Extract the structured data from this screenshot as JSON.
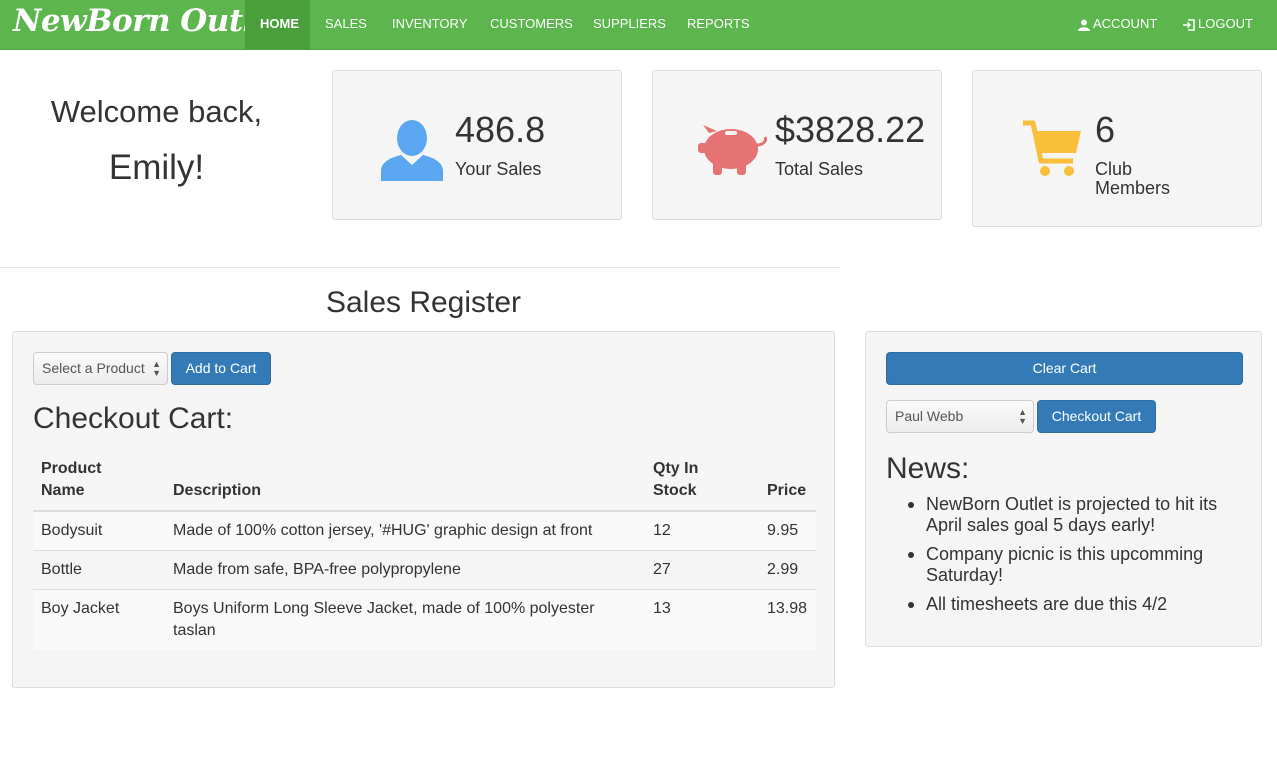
{
  "brand": "NewBorn Outlet",
  "nav": {
    "items": [
      "HOME",
      "SALES",
      "INVENTORY",
      "CUSTOMERS",
      "SUPPLIERS",
      "REPORTS"
    ],
    "active": "HOME",
    "account": "ACCOUNT",
    "logout": "LOGOUT"
  },
  "welcome": {
    "line1": "Welcome back,",
    "line2": "Emily!"
  },
  "stats": {
    "your_sales": {
      "value": "486.8",
      "label": "Your Sales",
      "icon": "user-icon",
      "color": "#5ba6f0"
    },
    "total_sales": {
      "value": "$3828.22",
      "label": "Total Sales",
      "icon": "piggy-bank-icon",
      "color": "#e57373"
    },
    "club": {
      "value": "6",
      "label_line1": "Club",
      "label_line2": "Members",
      "icon": "shopping-cart-icon",
      "color": "#f9bf3b"
    }
  },
  "register": {
    "title": "Sales Register",
    "product_select": "Select a Product",
    "add_button": "Add to Cart",
    "cart_title": "Checkout Cart:",
    "columns": {
      "name_line1": "Product",
      "name_line2": "Name",
      "description": "Description",
      "qty_line1": "Qty In",
      "qty_line2": "Stock",
      "price": "Price"
    },
    "rows": [
      {
        "name": "Bodysuit",
        "description": "Made of 100% cotton jersey, '#HUG' graphic design at front",
        "qty": "12",
        "price": "9.95"
      },
      {
        "name": "Bottle",
        "description": "Made from safe, BPA-free polypropylene",
        "qty": "27",
        "price": "2.99"
      },
      {
        "name": "Boy Jacket",
        "description": "Boys Uniform Long Sleeve Jacket, made of 100% polyester taslan",
        "qty": "13",
        "price": "13.98"
      }
    ]
  },
  "side": {
    "clear_button": "Clear Cart",
    "customer_select": "Paul Webb",
    "checkout_button": "Checkout Cart",
    "news_title": "News:",
    "news": [
      "NewBorn Outlet is projected to hit its April sales goal 5 days early!",
      "Company picnic is this upcomming Saturday!",
      "All timesheets are due this 4/2"
    ]
  },
  "colors": {
    "navbar": "#5cb54d",
    "primary_button": "#337ab7"
  }
}
